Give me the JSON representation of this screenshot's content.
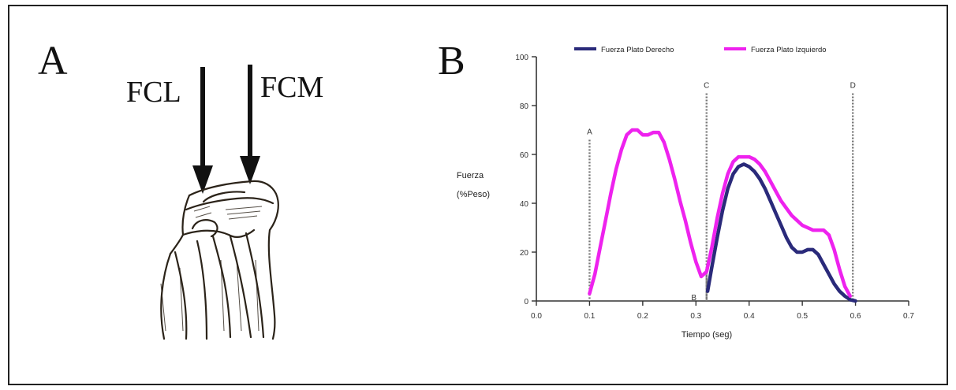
{
  "figure": {
    "panel_a": {
      "label": "A",
      "arrow_left_label": "FCL",
      "arrow_right_label": "FCM",
      "illustration": "knee-joint-drawing"
    },
    "panel_b": {
      "label": "B"
    }
  },
  "chart_data": {
    "type": "line",
    "title": "",
    "xlabel": "Tiempo (seg)",
    "ylabel_line1": "Fuerza",
    "ylabel_line2": "(%Peso)",
    "xlim": [
      0.0,
      0.7
    ],
    "ylim": [
      0,
      100
    ],
    "x_ticks": [
      0.0,
      0.1,
      0.2,
      0.3,
      0.4,
      0.5,
      0.6,
      0.7
    ],
    "x_tick_labels": [
      "0.0",
      "0.1",
      "0.2",
      "0.3",
      "0.4",
      "0.5",
      "0.6",
      "0.7"
    ],
    "y_ticks": [
      0,
      20,
      40,
      60,
      80,
      100
    ],
    "y_tick_labels": [
      "0",
      "20",
      "40",
      "60",
      "80",
      "100"
    ],
    "legend_position": "top",
    "grid": false,
    "series": [
      {
        "name": "Fuerza Plato Derecho",
        "color": "#2a2a7a",
        "x": [
          0.322,
          0.33,
          0.34,
          0.35,
          0.36,
          0.37,
          0.38,
          0.39,
          0.4,
          0.41,
          0.42,
          0.43,
          0.44,
          0.45,
          0.46,
          0.47,
          0.48,
          0.49,
          0.5,
          0.51,
          0.52,
          0.53,
          0.54,
          0.55,
          0.56,
          0.57,
          0.58,
          0.59,
          0.6
        ],
        "y": [
          4,
          14,
          26,
          37,
          46,
          52,
          55,
          56,
          55,
          53,
          50,
          46,
          41,
          36,
          31,
          26,
          22,
          20,
          20,
          21,
          21,
          19,
          15,
          11,
          7,
          4,
          2,
          0.5,
          0
        ]
      },
      {
        "name": "Fuerza Plato Izquierdo",
        "color": "#ee22ee",
        "x": [
          0.1,
          0.11,
          0.12,
          0.13,
          0.14,
          0.15,
          0.16,
          0.17,
          0.18,
          0.19,
          0.2,
          0.21,
          0.22,
          0.23,
          0.24,
          0.25,
          0.26,
          0.27,
          0.28,
          0.29,
          0.3,
          0.31,
          0.32,
          0.33,
          0.34,
          0.35,
          0.36,
          0.37,
          0.38,
          0.39,
          0.4,
          0.41,
          0.42,
          0.43,
          0.44,
          0.45,
          0.46,
          0.47,
          0.48,
          0.49,
          0.5,
          0.51,
          0.52,
          0.53,
          0.54,
          0.55,
          0.56,
          0.57,
          0.58,
          0.59
        ],
        "y": [
          3,
          11,
          22,
          33,
          44,
          54,
          62,
          68,
          70,
          70,
          68,
          68,
          69,
          69,
          65,
          58,
          50,
          41,
          33,
          24,
          16,
          10,
          12,
          22,
          34,
          44,
          52,
          57,
          59,
          59,
          59,
          58,
          56,
          53,
          49,
          45,
          41,
          38,
          35,
          33,
          31,
          30,
          29,
          29,
          29,
          27,
          21,
          13,
          6,
          2
        ]
      }
    ],
    "markers": [
      {
        "label": "A",
        "x": 0.1,
        "y_top": 66
      },
      {
        "label": "B",
        "x": 0.32,
        "y_top": 12
      },
      {
        "label": "C",
        "x": 0.32,
        "y_top": 85
      },
      {
        "label": "D",
        "x": 0.595,
        "y_top": 85
      }
    ]
  }
}
